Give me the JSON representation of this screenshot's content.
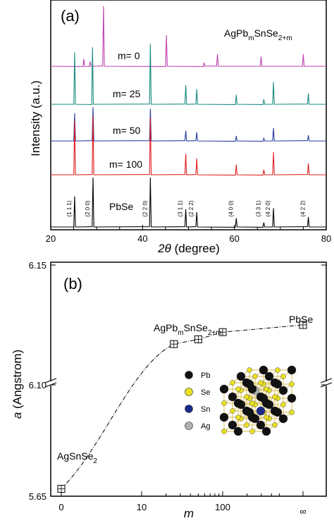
{
  "chart_data": [
    {
      "type": "line",
      "panel": "(a)",
      "xlabel_symbol": "2θ",
      "xlabel_unit": " (degree)",
      "ylabel": "Intensity (a.u.)",
      "xlim": [
        20,
        80
      ],
      "x_ticks": [
        "20",
        "40",
        "60",
        "80"
      ],
      "formula": {
        "base": "AgPb",
        "sub1": "m",
        "mid": "SnSe",
        "sub2": "2+m"
      },
      "series": [
        {
          "name": "m= 0",
          "color": "#c040b0",
          "peaks": [
            {
              "x": 27.2,
              "h": 0.12
            },
            {
              "x": 28.6,
              "h": 0.08
            },
            {
              "x": 31.5,
              "h": 1.0
            },
            {
              "x": 45.2,
              "h": 0.52
            },
            {
              "x": 53.4,
              "h": 0.06
            },
            {
              "x": 56.3,
              "h": 0.2
            },
            {
              "x": 65.8,
              "h": 0.16
            },
            {
              "x": 75.0,
              "h": 0.2
            }
          ]
        },
        {
          "name": "m= 25",
          "color": "#1a8a80",
          "peaks": [
            {
              "x": 25.2,
              "h": 0.82
            },
            {
              "x": 29.1,
              "h": 0.9
            },
            {
              "x": 41.7,
              "h": 0.95
            },
            {
              "x": 49.4,
              "h": 0.3
            },
            {
              "x": 51.8,
              "h": 0.24
            },
            {
              "x": 60.4,
              "h": 0.15
            },
            {
              "x": 66.4,
              "h": 0.08
            },
            {
              "x": 68.5,
              "h": 0.35
            },
            {
              "x": 76.1,
              "h": 0.17
            }
          ]
        },
        {
          "name": "m= 50",
          "color": "#2a3aa0",
          "peaks": [
            {
              "x": 25.2,
              "h": 0.82
            },
            {
              "x": 29.2,
              "h": 1.0
            },
            {
              "x": 41.7,
              "h": 0.95
            },
            {
              "x": 49.4,
              "h": 0.3
            },
            {
              "x": 51.8,
              "h": 0.26
            },
            {
              "x": 60.4,
              "h": 0.15
            },
            {
              "x": 66.4,
              "h": 0.08
            },
            {
              "x": 68.5,
              "h": 0.38
            },
            {
              "x": 76.1,
              "h": 0.17
            }
          ]
        },
        {
          "name": "m= 100",
          "color": "#e02020",
          "peaks": [
            {
              "x": 25.2,
              "h": 0.85
            },
            {
              "x": 29.2,
              "h": 0.92
            },
            {
              "x": 41.7,
              "h": 0.9
            },
            {
              "x": 49.4,
              "h": 0.33
            },
            {
              "x": 51.8,
              "h": 0.26
            },
            {
              "x": 60.4,
              "h": 0.16
            },
            {
              "x": 66.4,
              "h": 0.08
            },
            {
              "x": 68.5,
              "h": 0.36
            },
            {
              "x": 76.1,
              "h": 0.18
            }
          ]
        },
        {
          "name": "PbSe",
          "color": "#000000",
          "peaks": [
            {
              "x": 25.2,
              "h": 0.62
            },
            {
              "x": 29.2,
              "h": 1.0
            },
            {
              "x": 41.7,
              "h": 1.0
            },
            {
              "x": 49.4,
              "h": 0.36
            },
            {
              "x": 51.8,
              "h": 0.3
            },
            {
              "x": 60.4,
              "h": 0.18
            },
            {
              "x": 66.4,
              "h": 0.09
            },
            {
              "x": 68.5,
              "h": 0.38
            },
            {
              "x": 76.1,
              "h": 0.2
            }
          ]
        }
      ],
      "hkl_labels": [
        {
          "x": 25.2,
          "label": "(1 1 1)"
        },
        {
          "x": 29.2,
          "label": "(2 0 0)"
        },
        {
          "x": 41.7,
          "label": "(2 2 0)"
        },
        {
          "x": 49.4,
          "label": "(3 1 1)"
        },
        {
          "x": 51.8,
          "label": "(2 2 2)"
        },
        {
          "x": 60.4,
          "label": "(4 0 0)"
        },
        {
          "x": 66.4,
          "label": "(3 3 1)"
        },
        {
          "x": 68.5,
          "label": "(4 2 0)"
        },
        {
          "x": 76.1,
          "label": "(4 2 2)"
        }
      ]
    },
    {
      "type": "line",
      "panel": "(b)",
      "xlabel": "m",
      "ylabel_symbol": "a",
      "ylabel_unit": " (Angstrom)",
      "y_ticks": [
        "5.65",
        "6.10",
        "6.15"
      ],
      "x_ticks": [
        "0",
        "10",
        "100",
        "∞"
      ],
      "points": [
        {
          "m": 0,
          "a": 5.68
        },
        {
          "m": 25,
          "a": 6.117
        },
        {
          "m": 50,
          "a": 6.119
        },
        {
          "m": 100,
          "a": 6.122
        },
        {
          "m": "∞",
          "a": 6.125
        }
      ],
      "labels": {
        "left_compound": {
          "base": "AgSnSe",
          "sub": "2"
        },
        "right_compound": "PbSe",
        "middle_compound": {
          "base": "AgPb",
          "sub1": "m",
          "mid": "SnSe",
          "sub2": "2+m"
        }
      },
      "structure_legend": [
        {
          "name": "Pb",
          "color": "#111111"
        },
        {
          "name": "Se",
          "color": "#e8e020"
        },
        {
          "name": "Sn",
          "color": "#1a2a8a"
        },
        {
          "name": "Ag",
          "color": "#b0b0b0"
        }
      ]
    }
  ]
}
